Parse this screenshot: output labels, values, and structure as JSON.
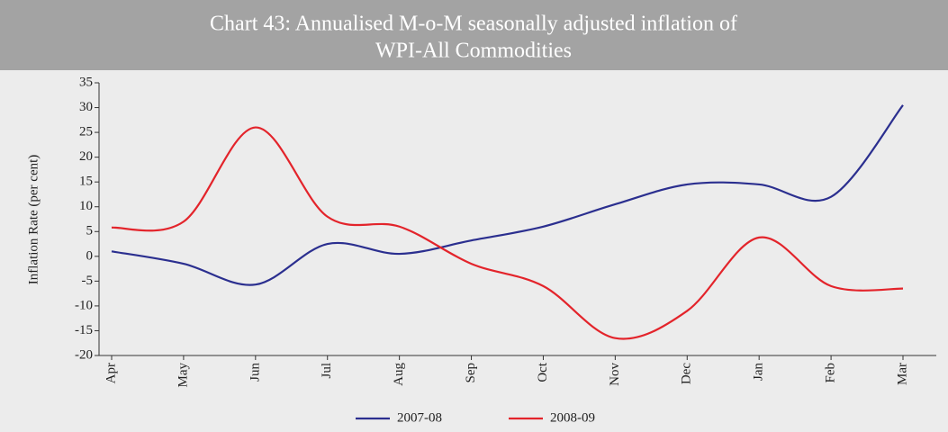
{
  "chart_data": {
    "type": "line",
    "title_lines": [
      "Chart 43: Annualised M-o-M seasonally adjusted inflation of",
      "WPI-All Commodities"
    ],
    "y_label": "Inflation Rate (per cent)",
    "categories": [
      "Apr",
      "May",
      "Jun",
      "Jul",
      "Aug",
      "Sep",
      "Oct",
      "Nov",
      "Dec",
      "Jan",
      "Feb",
      "Mar"
    ],
    "series": [
      {
        "name": "2007-08",
        "color": "#2b2f8f",
        "values": [
          1,
          -1.5,
          -5.7,
          2.5,
          0.5,
          3.2,
          6,
          10.5,
          14.5,
          14.5,
          12,
          30.5
        ]
      },
      {
        "name": "2008-09",
        "color": "#e3242b",
        "values": [
          5.8,
          7,
          26,
          8,
          6,
          -1.5,
          -6,
          -16.5,
          -11,
          3.8,
          -6,
          -6.5
        ]
      }
    ],
    "ylim": [
      -20,
      35
    ],
    "yticks": [
      -20,
      -15,
      -10,
      -5,
      0,
      5,
      10,
      15,
      20,
      25,
      30,
      35
    ],
    "legend": "bottom"
  }
}
